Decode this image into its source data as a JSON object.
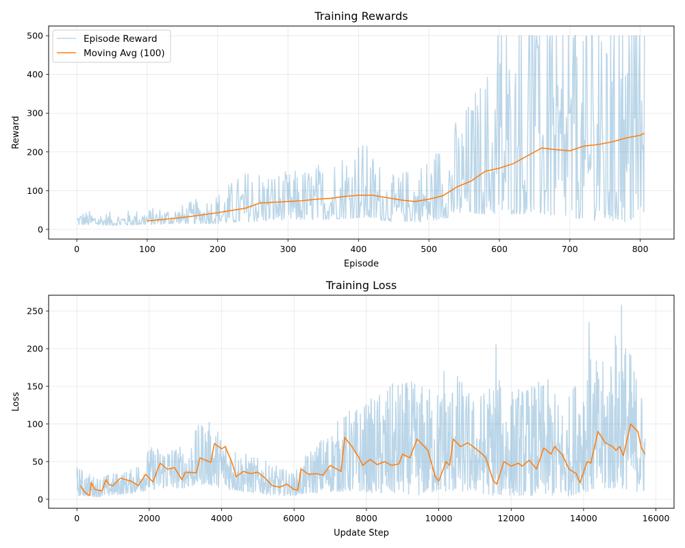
{
  "chart_data": [
    {
      "type": "line",
      "title": "Training Rewards",
      "xlabel": "Episode",
      "ylabel": "Reward",
      "xlim": [
        -40,
        848
      ],
      "ylim": [
        -25,
        525
      ],
      "xticks": [
        0,
        100,
        200,
        300,
        400,
        500,
        600,
        700,
        800
      ],
      "yticks": [
        0,
        100,
        200,
        300,
        400,
        500
      ],
      "grid": true,
      "legend_position": "top-left",
      "n_episodes": 807,
      "series": [
        {
          "name": "Episode Reward",
          "color": "#1f77b4",
          "alpha": 0.3,
          "style": "noisy",
          "envelope_x": [
            0,
            50,
            100,
            150,
            200,
            250,
            300,
            350,
            400,
            450,
            500,
            550,
            600,
            650,
            700,
            750,
            806
          ],
          "envelope_high": [
            50,
            45,
            55,
            65,
            100,
            170,
            150,
            180,
            250,
            140,
            200,
            320,
            500,
            500,
            500,
            500,
            500
          ],
          "envelope_low": [
            12,
            10,
            12,
            15,
            15,
            20,
            25,
            25,
            30,
            20,
            20,
            40,
            40,
            40,
            30,
            20,
            20
          ]
        },
        {
          "name": "Moving Avg (100)",
          "color": "#ff7f0e",
          "alpha": 1,
          "style": "smooth",
          "x": [
            100,
            120,
            140,
            160,
            180,
            200,
            220,
            240,
            260,
            280,
            300,
            320,
            340,
            360,
            380,
            400,
            420,
            440,
            460,
            480,
            500,
            520,
            540,
            560,
            580,
            600,
            620,
            640,
            660,
            680,
            700,
            720,
            740,
            760,
            780,
            800,
            806
          ],
          "y": [
            22,
            25,
            29,
            33,
            38,
            43,
            49,
            55,
            68,
            70,
            72,
            74,
            78,
            80,
            85,
            88,
            88,
            82,
            76,
            72,
            78,
            87,
            110,
            125,
            150,
            158,
            170,
            190,
            210,
            206,
            203,
            215,
            219,
            226,
            236,
            243,
            248
          ]
        }
      ]
    },
    {
      "type": "line",
      "title": "Training Loss",
      "xlabel": "Update Step",
      "ylabel": "Loss",
      "xlim": [
        -780,
        16500
      ],
      "ylim": [
        -12,
        271
      ],
      "xticks": [
        0,
        2000,
        4000,
        6000,
        8000,
        10000,
        12000,
        14000,
        16000
      ],
      "yticks": [
        0,
        50,
        100,
        150,
        200,
        250
      ],
      "grid": true,
      "n_steps": 15700,
      "series": [
        {
          "name": "Loss",
          "color": "#1f77b4",
          "alpha": 0.3,
          "style": "noisy",
          "envelope_x": [
            0,
            500,
            1000,
            1500,
            2000,
            2500,
            3000,
            3500,
            4000,
            4500,
            5000,
            5500,
            6000,
            6500,
            7000,
            7500,
            8000,
            8500,
            9000,
            9500,
            10000,
            10500,
            11000,
            11500,
            12000,
            12500,
            13000,
            13500,
            14000,
            14500,
            15000,
            15500,
            15700
          ],
          "envelope_high": [
            45,
            30,
            35,
            40,
            70,
            75,
            70,
            110,
            90,
            65,
            55,
            45,
            35,
            70,
            95,
            120,
            130,
            150,
            160,
            155,
            150,
            170,
            135,
            165,
            150,
            155,
            160,
            125,
            200,
            180,
            240,
            170,
            130
          ],
          "envelope_low": [
            5,
            3,
            5,
            8,
            12,
            15,
            15,
            20,
            15,
            10,
            8,
            5,
            5,
            8,
            10,
            10,
            10,
            5,
            8,
            5,
            10,
            10,
            10,
            5,
            5,
            5,
            5,
            3,
            10,
            10,
            15,
            10,
            8
          ],
          "spikes": [
            [
              10150,
              170
            ],
            [
              11580,
              205
            ],
            [
              14150,
              235
            ],
            [
              15050,
              258
            ]
          ]
        },
        {
          "name": "Moving Avg",
          "color": "#ff7f0e",
          "alpha": 1,
          "style": "smooth",
          "x": [
            100,
            200,
            350,
            400,
            500,
            700,
            800,
            900,
            1000,
            1200,
            1500,
            1700,
            1900,
            2000,
            2100,
            2300,
            2500,
            2700,
            2900,
            3000,
            3300,
            3400,
            3700,
            3800,
            4000,
            4100,
            4300,
            4400,
            4600,
            4800,
            5000,
            5200,
            5400,
            5600,
            5800,
            6000,
            6100,
            6200,
            6400,
            6600,
            6800,
            7000,
            7300,
            7400,
            7600,
            7800,
            7900,
            8100,
            8300,
            8500,
            8700,
            8900,
            9000,
            9200,
            9400,
            9600,
            9700,
            9900,
            10000,
            10200,
            10300,
            10400,
            10600,
            10800,
            11000,
            11200,
            11300,
            11500,
            11600,
            11800,
            12000,
            12200,
            12300,
            12500,
            12700,
            12900,
            13100,
            13200,
            13400,
            13600,
            13800,
            13900,
            14100,
            14200,
            14400,
            14600,
            14800,
            14900,
            15000,
            15100,
            15300,
            15400,
            15500,
            15600,
            15700
          ],
          "y": [
            18,
            10,
            5,
            22,
            13,
            11,
            26,
            19,
            18,
            28,
            24,
            18,
            33,
            28,
            23,
            48,
            40,
            42,
            26,
            36,
            35,
            55,
            49,
            74,
            67,
            70,
            47,
            30,
            37,
            34,
            36,
            28,
            18,
            16,
            20,
            13,
            12,
            40,
            33,
            34,
            32,
            45,
            37,
            82,
            70,
            55,
            45,
            53,
            46,
            50,
            45,
            47,
            60,
            55,
            80,
            70,
            65,
            30,
            24,
            50,
            45,
            80,
            70,
            75,
            68,
            60,
            55,
            25,
            20,
            50,
            44,
            48,
            44,
            52,
            40,
            68,
            60,
            70,
            60,
            40,
            34,
            22,
            50,
            48,
            90,
            75,
            70,
            65,
            70,
            58,
            100,
            95,
            90,
            68,
            60
          ]
        }
      ]
    }
  ],
  "legend": {
    "item1": "Episode Reward",
    "item2": "Moving Avg (100)"
  }
}
